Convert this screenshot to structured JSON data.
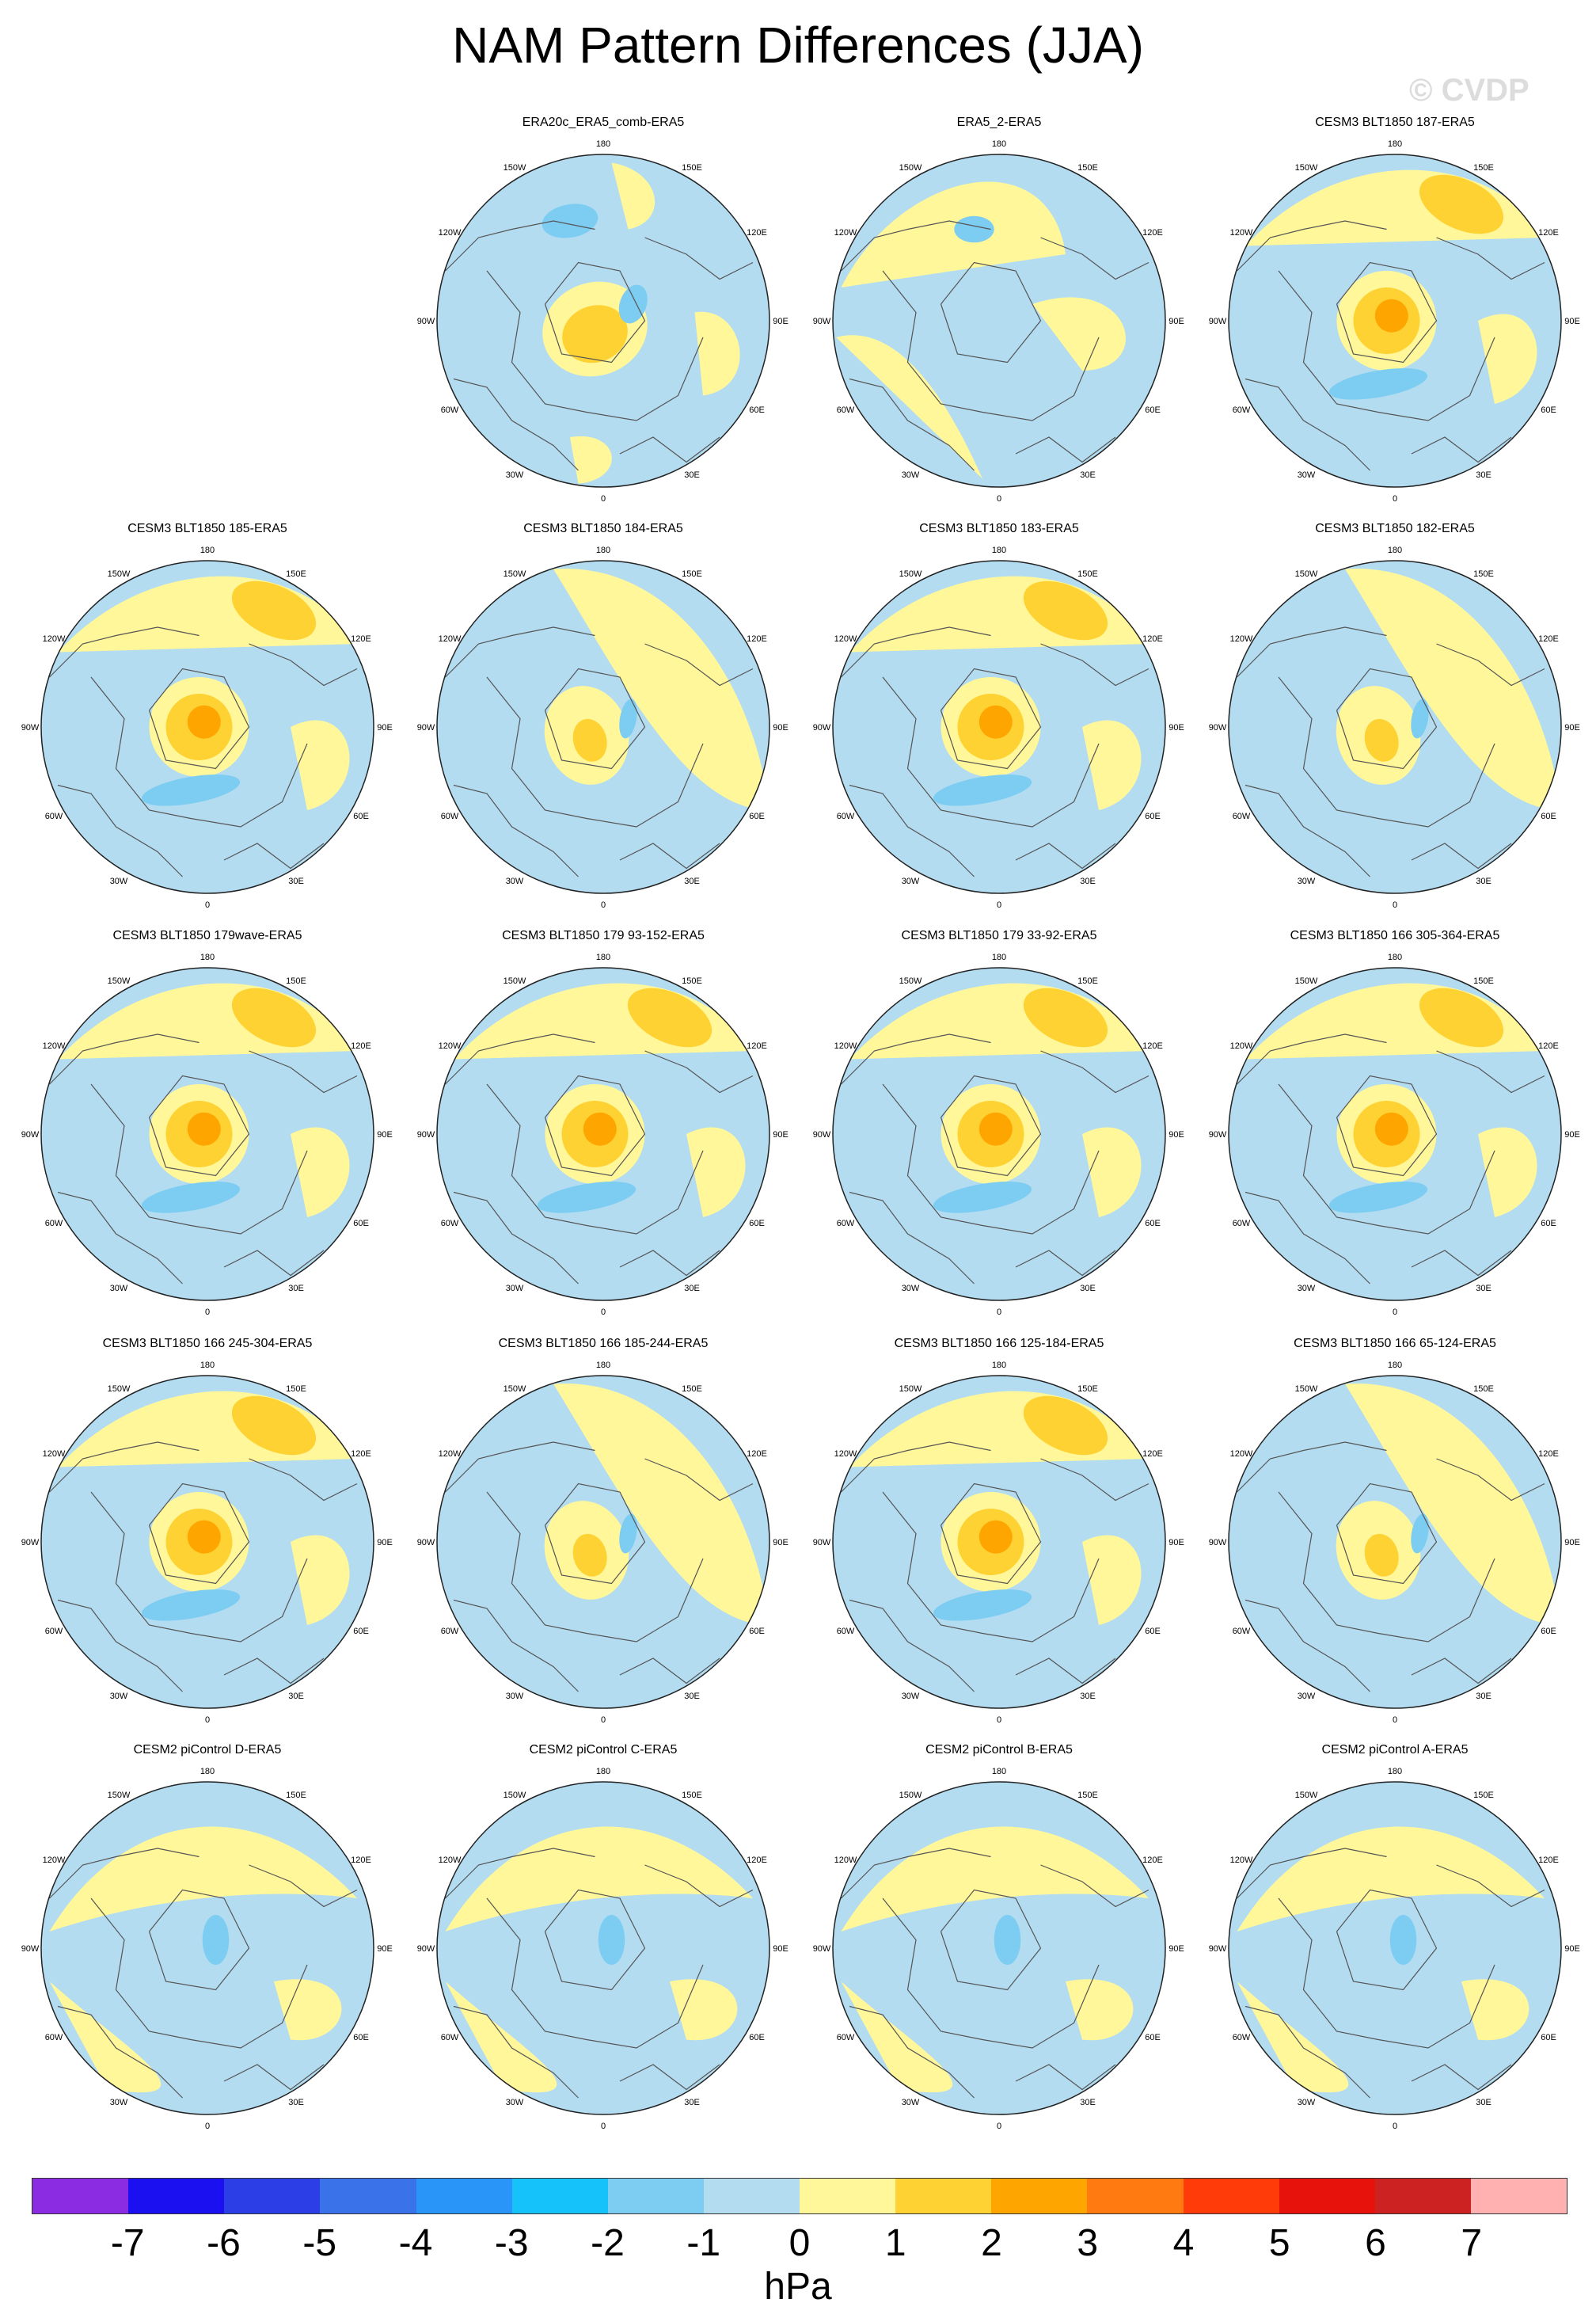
{
  "title": "NAM Pattern Differences (JJA)",
  "watermark": "© CVDP",
  "units": "hPa",
  "colorbar": {
    "labels": [
      "-7",
      "-6",
      "-5",
      "-4",
      "-3",
      "-2",
      "-1",
      "0",
      "1",
      "2",
      "3",
      "4",
      "5",
      "6",
      "7"
    ],
    "colors": [
      "#8b2be2",
      "#1a10f0",
      "#2c3ee6",
      "#3a72ea",
      "#2a95f8",
      "#15c2fa",
      "#7dcdf2",
      "#b3dcf1",
      "#fff799",
      "#ffd234",
      "#ffa500",
      "#ff7a11",
      "#ff3b0a",
      "#e8120c",
      "#cc2222",
      "#ffb0b0"
    ]
  },
  "lon_labels": [
    "180",
    "150E",
    "120E",
    "90E",
    "60E",
    "30E",
    "0",
    "30W",
    "60W",
    "90W",
    "120W",
    "150W"
  ],
  "panels": [
    {
      "title": "",
      "empty": true
    },
    {
      "title": "ERA20c_ERA5_comb-ERA5",
      "pattern": "a"
    },
    {
      "title": "ERA5_2-ERA5",
      "pattern": "b"
    },
    {
      "title": "CESM3 BLT1850 187-ERA5",
      "pattern": "c"
    },
    {
      "title": "CESM3 BLT1850 185-ERA5",
      "pattern": "c"
    },
    {
      "title": "CESM3 BLT1850 184-ERA5",
      "pattern": "d"
    },
    {
      "title": "CESM3 BLT1850 183-ERA5",
      "pattern": "c"
    },
    {
      "title": "CESM3 BLT1850 182-ERA5",
      "pattern": "d"
    },
    {
      "title": "CESM3 BLT1850 179wave-ERA5",
      "pattern": "c"
    },
    {
      "title": "CESM3 BLT1850 179 93-152-ERA5",
      "pattern": "c"
    },
    {
      "title": "CESM3 BLT1850 179 33-92-ERA5",
      "pattern": "c"
    },
    {
      "title": "CESM3 BLT1850 166 305-364-ERA5",
      "pattern": "c"
    },
    {
      "title": "CESM3 BLT1850 166 245-304-ERA5",
      "pattern": "c"
    },
    {
      "title": "CESM3 BLT1850 166 185-244-ERA5",
      "pattern": "d"
    },
    {
      "title": "CESM3 BLT1850 166 125-184-ERA5",
      "pattern": "c"
    },
    {
      "title": "CESM3 BLT1850 166 65-124-ERA5",
      "pattern": "d"
    },
    {
      "title": "CESM2 piControl D-ERA5",
      "pattern": "e"
    },
    {
      "title": "CESM2 piControl C-ERA5",
      "pattern": "e"
    },
    {
      "title": "CESM2 piControl B-ERA5",
      "pattern": "e"
    },
    {
      "title": "CESM2 piControl A-ERA5",
      "pattern": "e"
    }
  ]
}
